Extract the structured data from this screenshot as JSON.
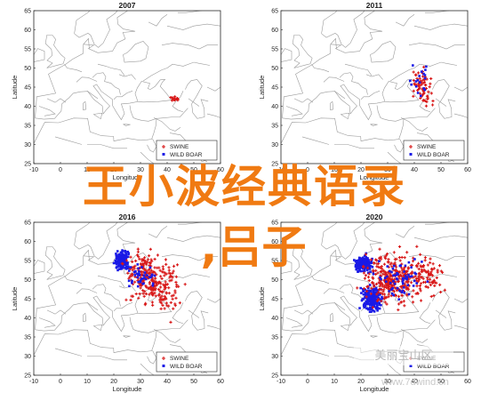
{
  "panels": [
    {
      "title": "2007",
      "xlabel": "Longitude",
      "ylabel": "Latitude",
      "xticks": [
        "-10",
        "0",
        "10",
        "20",
        "30",
        "40",
        "50",
        "60"
      ],
      "yticks": [
        "25",
        "30",
        "35",
        "40",
        "45",
        "50",
        "55",
        "60",
        "65"
      ],
      "legend": [
        "SWINE",
        "WILD BOAR"
      ],
      "clusters": [
        {
          "type": "swine",
          "lon": 43,
          "lat": 42,
          "slon": 1.5,
          "slat": 0.6,
          "n": 16
        }
      ]
    },
    {
      "title": "2011",
      "xlabel": "Longitude",
      "ylabel": "Latitude",
      "xticks": [
        "-10",
        "0",
        "10",
        "20",
        "30",
        "40",
        "50",
        "60"
      ],
      "yticks": [
        "25",
        "30",
        "35",
        "40",
        "45",
        "50",
        "55",
        "60",
        "65"
      ],
      "legend": [
        "SWINE",
        "WILD BOAR"
      ],
      "clusters": [
        {
          "type": "swine",
          "lon": 43,
          "lat": 45,
          "slon": 3,
          "slat": 4,
          "n": 70
        },
        {
          "type": "boar",
          "lon": 42,
          "lat": 47,
          "slon": 3,
          "slat": 4,
          "n": 18
        }
      ]
    },
    {
      "title": "2016",
      "xlabel": "Longitude",
      "ylabel": "Latitude",
      "xticks": [
        "-10",
        "0",
        "10",
        "20",
        "30",
        "40",
        "50",
        "60"
      ],
      "yticks": [
        "25",
        "30",
        "35",
        "40",
        "45",
        "50",
        "55",
        "60",
        "65"
      ],
      "legend": [
        "SWINE",
        "WILD BOAR"
      ],
      "clusters": [
        {
          "type": "boar",
          "lon": 23,
          "lat": 55,
          "slon": 2,
          "slat": 1.8,
          "n": 170
        },
        {
          "type": "swine",
          "lon": 32,
          "lat": 51,
          "slon": 6,
          "slat": 5,
          "n": 200
        },
        {
          "type": "swine",
          "lon": 40,
          "lat": 48,
          "slon": 5,
          "slat": 5,
          "n": 80
        },
        {
          "type": "boar",
          "lon": 30,
          "lat": 51,
          "slon": 4,
          "slat": 3,
          "n": 40
        }
      ]
    },
    {
      "title": "2020",
      "xlabel": "Longitude",
      "ylabel": "Latitude",
      "xticks": [
        "-10",
        "0",
        "10",
        "20",
        "30",
        "40",
        "50",
        "60"
      ],
      "yticks": [
        "25",
        "30",
        "35",
        "40",
        "45",
        "50",
        "55",
        "60",
        "65"
      ],
      "legend": [
        "SWINE",
        "WILD BOAR"
      ],
      "clusters": [
        {
          "type": "boar",
          "lon": 21,
          "lat": 54,
          "slon": 2.5,
          "slat": 1.6,
          "n": 180
        },
        {
          "type": "boar",
          "lon": 24,
          "lat": 45,
          "slon": 3,
          "slat": 2.5,
          "n": 220
        },
        {
          "type": "swine",
          "lon": 32,
          "lat": 50,
          "slon": 8,
          "slat": 5,
          "n": 320
        },
        {
          "type": "swine",
          "lon": 45,
          "lat": 51,
          "slon": 5,
          "slat": 4,
          "n": 80
        },
        {
          "type": "boar",
          "lon": 35,
          "lat": 50,
          "slon": 6,
          "slat": 4,
          "n": 60
        }
      ]
    }
  ],
  "colors": {
    "swine": "#d81818",
    "wild_boar": "#1a1ae6",
    "overlay_text": "#f07a12"
  },
  "overlay": {
    "line1": "王小波经典语录",
    "line2": ",吕子"
  },
  "watermark": {
    "bar_text": "美丽宝山区",
    "url": "www.7dwind.cn"
  }
}
